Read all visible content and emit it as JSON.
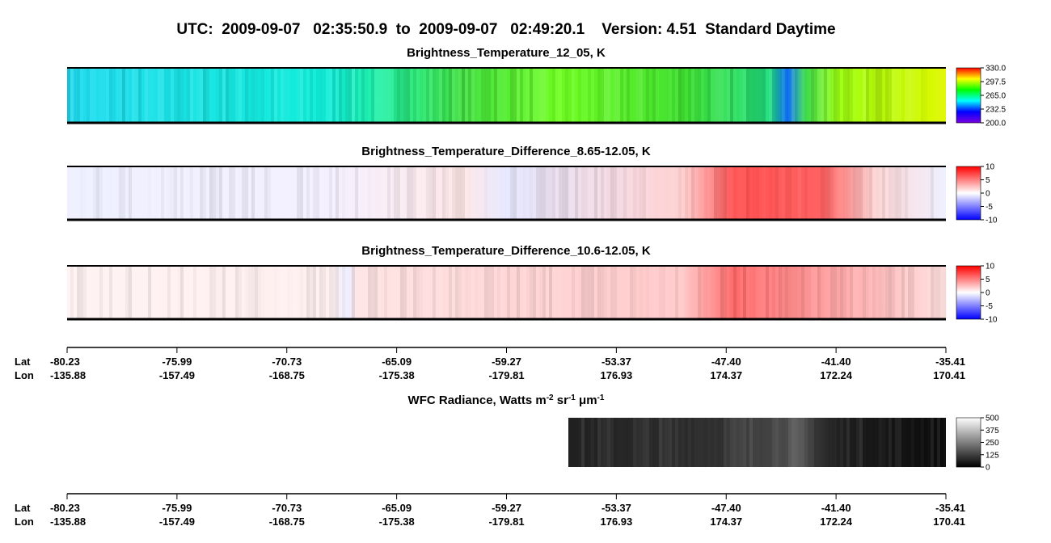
{
  "title": "UTC:  2009-09-07   02:35:50.9  to  2009-09-07   02:49:20.1    Version: 4.51  Standard Daytime",
  "chart_data": [
    {
      "type": "heatmap",
      "title": "Brightness_Temperature_12_05, K",
      "colormap": [
        "#7a00e0",
        "#0000ff",
        "#00ffff",
        "#00ff00",
        "#ffff00",
        "#ff0000"
      ],
      "clim": [
        200,
        330
      ],
      "cticks": [
        {
          "value": 200,
          "label": "200.0"
        },
        232.5,
        {
          "value": 265,
          "label": "265.0"
        },
        297.5,
        {
          "value": 330,
          "label": "330.0"
        }
      ]
    },
    {
      "type": "heatmap",
      "title": "Brightness_Temperature_Difference_8.65-12.05, K",
      "colormap": [
        "#0000ff",
        "#ffffff",
        "#ff0000"
      ],
      "clim": [
        -10,
        10
      ],
      "cticks": [
        -10,
        -5,
        0,
        5,
        10
      ]
    },
    {
      "type": "heatmap",
      "title": "Brightness_Temperature_Difference_10.6-12.05, K",
      "colormap": [
        "#0000ff",
        "#ffffff",
        "#ff0000"
      ],
      "clim": [
        -10,
        10
      ],
      "cticks": [
        -10,
        -5,
        0,
        5,
        10
      ]
    },
    {
      "type": "heatmap",
      "title_parts": [
        "WFC Radiance, Watts m",
        "-2",
        " sr",
        "-1",
        " μm",
        "-1"
      ],
      "colormap": [
        "#000000",
        "#ffffff"
      ],
      "clim": [
        0,
        500
      ],
      "cticks": [
        0,
        125,
        250,
        375,
        500
      ]
    }
  ],
  "lat_lon_axis": {
    "row_labels": [
      "Lat",
      "Lon"
    ],
    "lat": [
      "-80.23",
      "-75.99",
      "-70.73",
      "-65.09",
      "-59.27",
      "-53.37",
      "-47.40",
      "-41.40",
      "-35.41"
    ],
    "lon": [
      "-135.88",
      "-157.49",
      "-168.75",
      "-175.38",
      "-179.81",
      "176.93",
      "174.37",
      "172.24",
      "170.41"
    ]
  }
}
